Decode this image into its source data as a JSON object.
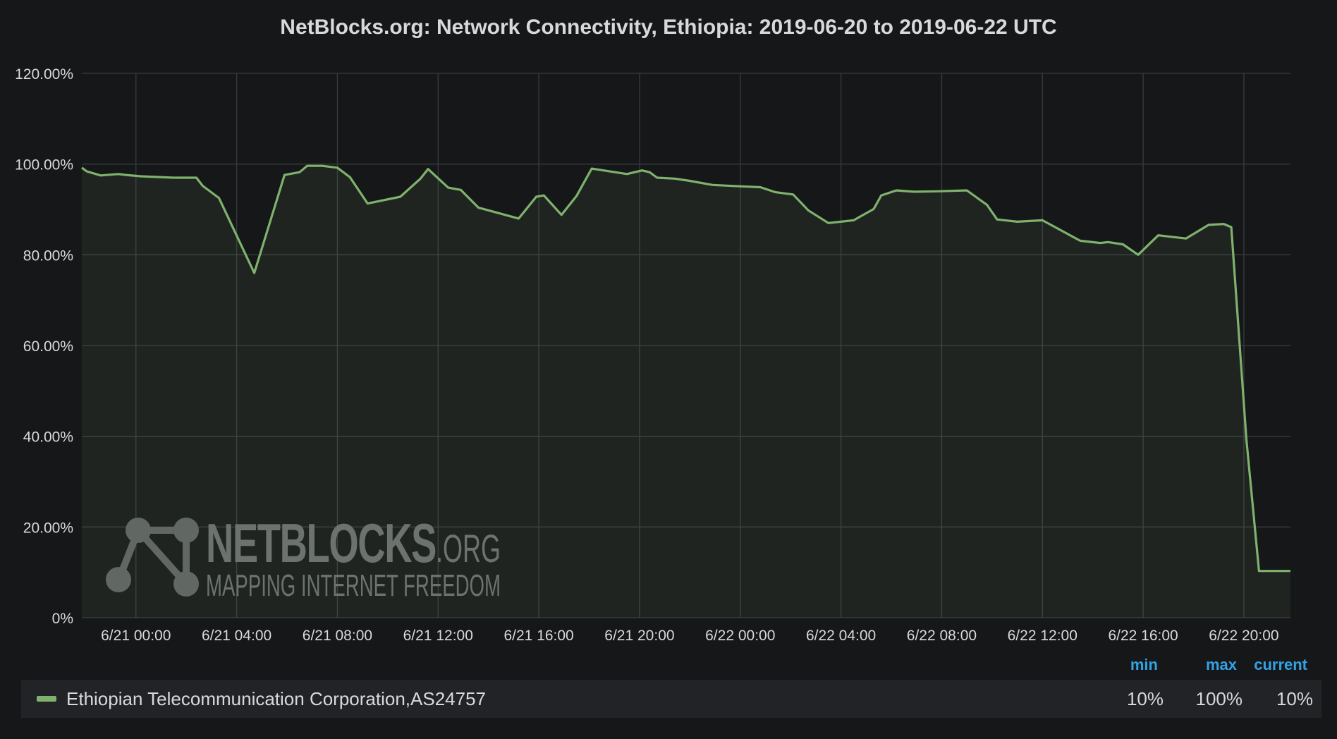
{
  "chart_data": {
    "type": "area",
    "title": "NetBlocks.org: Network Connectivity, Ethiopia: 2019-06-20 to 2019-06-22 UTC",
    "xlabel": "",
    "ylabel": "",
    "ylim": [
      0,
      120
    ],
    "y_ticks": [
      "0%",
      "20.00%",
      "40.00%",
      "60.00%",
      "80.00%",
      "100.00%",
      "120.00%"
    ],
    "x_ticks": [
      "6/21 00:00",
      "6/21 04:00",
      "6/21 08:00",
      "6/21 12:00",
      "6/21 16:00",
      "6/21 20:00",
      "6/22 00:00",
      "6/22 04:00",
      "6/22 08:00",
      "6/22 12:00",
      "6/22 16:00",
      "6/22 20:00"
    ],
    "x_tick_hours": [
      0,
      4,
      8,
      12,
      16,
      20,
      24,
      28,
      32,
      36,
      40,
      44
    ],
    "xlim_hours": [
      -2.15,
      45.85
    ],
    "grid": true,
    "series": [
      {
        "name": "Ethiopian Telecommunication Corporation,AS24757",
        "color": "#7eb26d",
        "x_hours": [
          -2.15,
          -1.95,
          -1.4,
          -0.7,
          -0.4,
          0.2,
          1.5,
          2.4,
          2.65,
          3.3,
          4.7,
          5.9,
          6.5,
          6.8,
          7.4,
          8.0,
          8.5,
          9.2,
          10.5,
          11.3,
          11.6,
          12.4,
          12.9,
          13.6,
          15.2,
          15.9,
          16.2,
          16.9,
          17.5,
          18.1,
          19.5,
          20.1,
          20.4,
          20.7,
          21.4,
          22.0,
          22.9,
          24.0,
          24.8,
          25.4,
          26.1,
          26.7,
          27.5,
          28.5,
          29.3,
          29.6,
          30.2,
          30.9,
          31.8,
          33.0,
          33.8,
          34.2,
          35.0,
          36.0,
          37.5,
          38.3,
          38.6,
          39.2,
          39.8,
          40.6,
          41.7,
          42.6,
          43.2,
          43.5,
          44.1,
          44.6,
          45.6,
          45.85
        ],
        "values": [
          99.2,
          98.4,
          97.5,
          97.8,
          97.6,
          97.3,
          97.0,
          97.0,
          95.2,
          92.5,
          76.0,
          97.6,
          98.2,
          99.6,
          99.6,
          99.2,
          97.1,
          91.3,
          92.8,
          96.8,
          98.9,
          94.8,
          94.3,
          90.4,
          88.0,
          92.8,
          93.1,
          88.8,
          93.0,
          99.0,
          97.8,
          98.6,
          98.2,
          97.0,
          96.8,
          96.3,
          95.4,
          95.1,
          94.9,
          93.8,
          93.3,
          89.8,
          87.0,
          87.6,
          90.1,
          93.1,
          94.2,
          93.9,
          94.0,
          94.2,
          91.0,
          87.8,
          87.3,
          87.6,
          83.1,
          82.6,
          82.8,
          82.3,
          80.0,
          84.3,
          83.6,
          86.6,
          86.8,
          86.1,
          39.3,
          10.3,
          10.3,
          10.3
        ]
      }
    ]
  },
  "watermark": {
    "brand": "NETBLOCKS",
    "suffix": ".ORG",
    "tagline": "MAPPING INTERNET FREEDOM"
  },
  "legend": {
    "headers": {
      "min": "min",
      "max": "max",
      "current": "current"
    },
    "header_color": "#33a2e5",
    "rows": [
      {
        "name": "Ethiopian Telecommunication Corporation,AS24757",
        "min": "10%",
        "max": "100%",
        "current": "10%"
      }
    ]
  }
}
